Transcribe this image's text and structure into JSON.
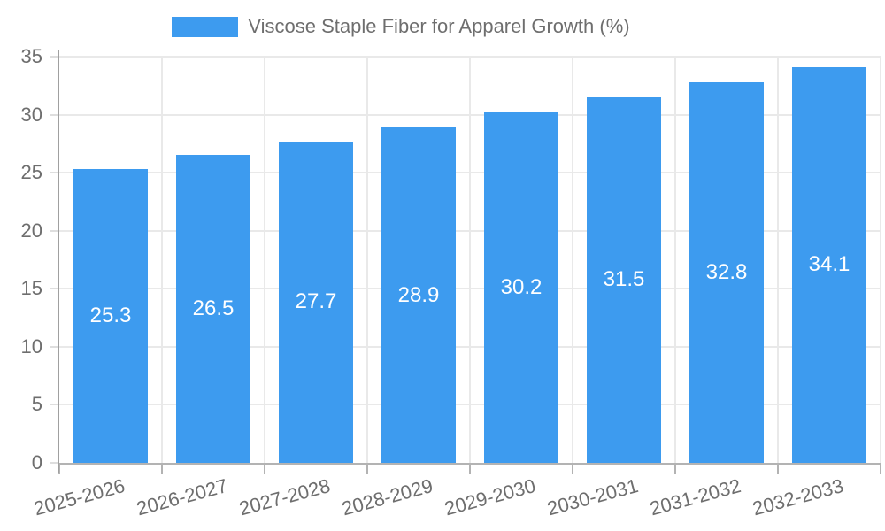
{
  "chart_data": {
    "type": "bar",
    "title": "",
    "legend": {
      "label": "Viscose Staple Fiber for Apparel Growth (%)",
      "position": "top-center"
    },
    "categories": [
      "2025-2026",
      "2026-2027",
      "2027-2028",
      "2028-2029",
      "2029-2030",
      "2030-2031",
      "2031-2032",
      "2032-2033"
    ],
    "series": [
      {
        "name": "Viscose Staple Fiber for Apparel Growth (%)",
        "values": [
          25.3,
          26.5,
          27.7,
          28.9,
          30.2,
          31.5,
          32.8,
          34.1
        ]
      }
    ],
    "value_labels": [
      "25.3",
      "26.5",
      "27.7",
      "28.9",
      "30.2",
      "31.5",
      "32.8",
      "34.1"
    ],
    "xlabel": "",
    "ylabel": "",
    "ylim": [
      0,
      35
    ],
    "yticks": [
      0,
      5,
      10,
      15,
      20,
      25,
      30,
      35
    ],
    "grid": true,
    "value_label_position": "inside-center",
    "colors": {
      "bar": "#3D9BEF",
      "value_label": "#FFFFFF",
      "axis_text": "#6E6E6E",
      "gridline": "#E9E9E9",
      "axis_line": "#A0A0A0",
      "background": "#FFFFFF"
    }
  }
}
